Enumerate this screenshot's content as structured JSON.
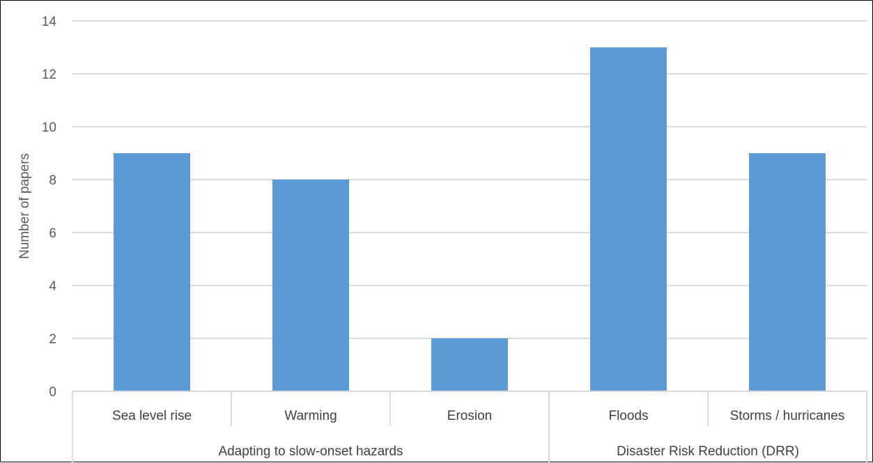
{
  "chart_data": {
    "type": "bar",
    "title": "",
    "ylabel": "Number of papers",
    "xlabel": "",
    "ylim": [
      0,
      14
    ],
    "y_ticks": [
      0,
      2,
      4,
      6,
      8,
      10,
      12,
      14
    ],
    "grid": true,
    "legend": "none",
    "bar_color": "#5B9BD5",
    "categories": [
      "Sea level rise",
      "Warming",
      "Erosion",
      "Floods",
      "Storms / hurricanes"
    ],
    "values": [
      9,
      8,
      2,
      13,
      9
    ],
    "groups": [
      {
        "label": "Adapting to slow-onset hazards",
        "categories": [
          "Sea level rise",
          "Warming",
          "Erosion"
        ]
      },
      {
        "label": "Disaster Risk Reduction (DRR)",
        "categories": [
          "Floods",
          "Storms / hurricanes"
        ]
      }
    ]
  }
}
